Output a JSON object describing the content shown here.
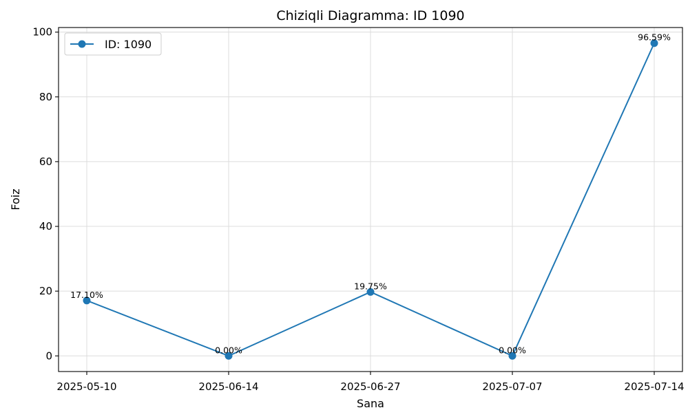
{
  "chart_data": {
    "type": "line",
    "title": "Chiziqli Diagramma: ID 1090",
    "xlabel": "Sana",
    "ylabel": "Foiz",
    "categories": [
      "2025-05-10",
      "2025-06-14",
      "2025-06-27",
      "2025-07-07",
      "2025-07-14"
    ],
    "series": [
      {
        "name": "ID: 1090",
        "values": [
          17.1,
          0.0,
          19.75,
          0.0,
          96.59
        ],
        "data_labels": [
          "17.10%",
          "0.00%",
          "19.75%",
          "0.00%",
          "96.59%"
        ],
        "color": "#1f77b4",
        "marker": "circle"
      }
    ],
    "ylim": [
      -4.83,
      101.42
    ],
    "yticks": [
      0,
      20,
      40,
      60,
      80,
      100
    ],
    "ytick_labels": [
      "0",
      "20",
      "40",
      "60",
      "80",
      "100"
    ],
    "grid": true,
    "legend_position": "top-left"
  }
}
